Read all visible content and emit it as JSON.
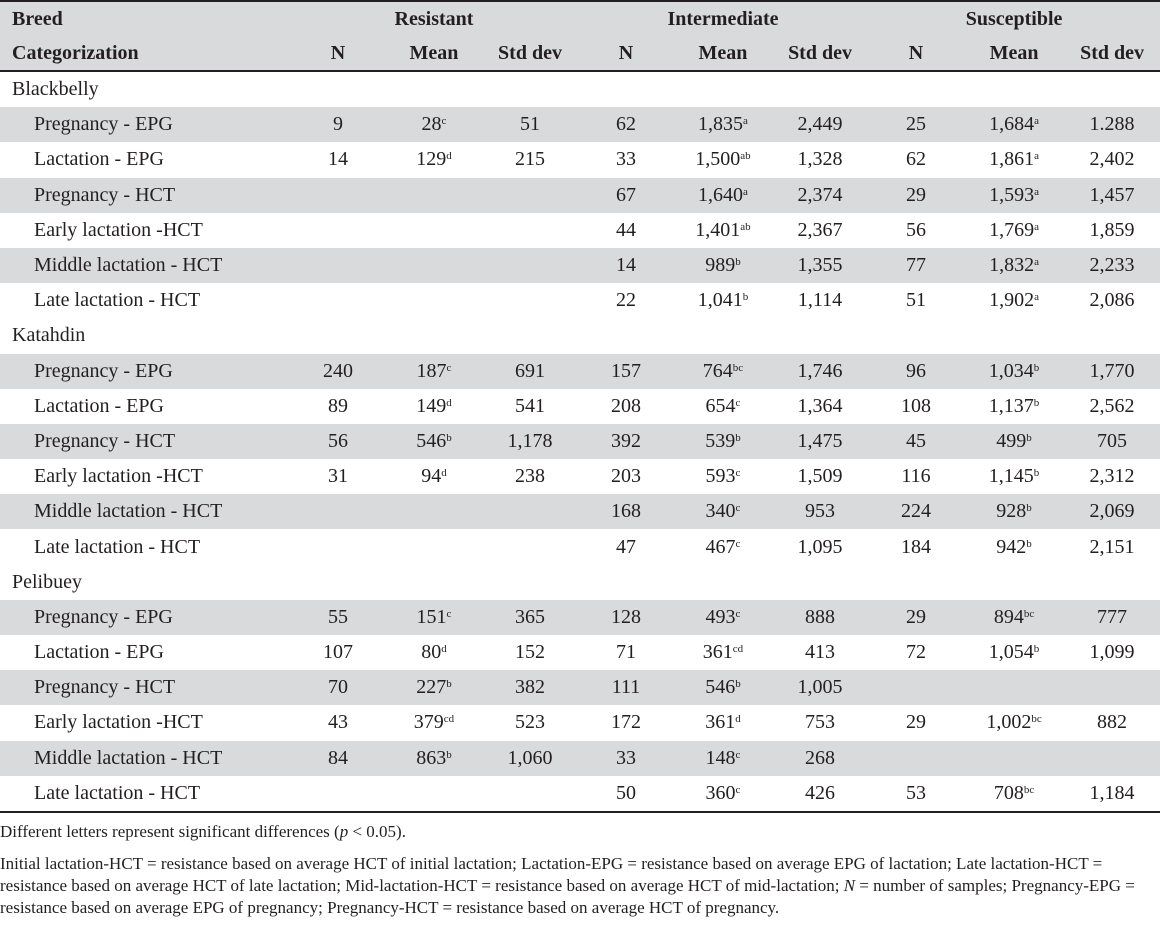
{
  "header": {
    "breed_label": "Breed",
    "categorization_label": "Categorization",
    "groups": [
      "Resistant",
      "Intermediate",
      "Susceptible"
    ],
    "subcols": [
      "N",
      "Mean",
      "Std dev"
    ]
  },
  "breeds": [
    {
      "name": "Blackbelly",
      "rows": [
        {
          "label": "Pregnancy - EPG",
          "cells": [
            [
              "9",
              "28",
              "c",
              "51"
            ],
            [
              "62",
              "1,835",
              "a",
              "2,449"
            ],
            [
              "25",
              "1,684",
              "a",
              "1.288"
            ]
          ]
        },
        {
          "label": "Lactation - EPG",
          "cells": [
            [
              "14",
              "129",
              "d",
              "215"
            ],
            [
              "33",
              "1,500",
              "ab",
              "1,328"
            ],
            [
              "62",
              "1,861",
              "a",
              "2,402"
            ]
          ]
        },
        {
          "label": "Pregnancy - HCT",
          "cells": [
            [
              "",
              "",
              "",
              ""
            ],
            [
              "67",
              "1,640",
              "a",
              "2,374"
            ],
            [
              "29",
              "1,593",
              "a",
              "1,457"
            ]
          ]
        },
        {
          "label": "Early lactation -HCT",
          "cells": [
            [
              "",
              "",
              "",
              ""
            ],
            [
              "44",
              "1,401",
              "ab",
              "2,367"
            ],
            [
              "56",
              "1,769",
              "a",
              "1,859"
            ]
          ]
        },
        {
          "label": "Middle lactation - HCT",
          "cells": [
            [
              "",
              "",
              "",
              ""
            ],
            [
              "14",
              "989",
              "b",
              "1,355"
            ],
            [
              "77",
              "1,832",
              "a",
              "2,233"
            ]
          ]
        },
        {
          "label": "Late lactation - HCT",
          "cells": [
            [
              "",
              "",
              "",
              ""
            ],
            [
              "22",
              "1,041",
              "b",
              "1,114"
            ],
            [
              "51",
              "1,902",
              "a",
              "2,086"
            ]
          ]
        }
      ]
    },
    {
      "name": "Katahdin",
      "rows": [
        {
          "label": "Pregnancy - EPG",
          "cells": [
            [
              "240",
              "187",
              "c",
              "691"
            ],
            [
              "157",
              "764",
              "bc",
              "1,746"
            ],
            [
              "96",
              "1,034",
              "b",
              "1,770"
            ]
          ]
        },
        {
          "label": "Lactation - EPG",
          "cells": [
            [
              "89",
              "149",
              "d",
              "541"
            ],
            [
              "208",
              "654",
              "c",
              "1,364"
            ],
            [
              "108",
              "1,137",
              "b",
              "2,562"
            ]
          ]
        },
        {
          "label": "Pregnancy - HCT",
          "cells": [
            [
              "56",
              "546",
              "b",
              "1,178"
            ],
            [
              "392",
              "539",
              "b",
              "1,475"
            ],
            [
              "45",
              "499",
              "b",
              "705"
            ]
          ]
        },
        {
          "label": "Early lactation -HCT",
          "cells": [
            [
              "31",
              "94",
              "d",
              "238"
            ],
            [
              "203",
              "593",
              "c",
              "1,509"
            ],
            [
              "116",
              "1,145",
              "b",
              "2,312"
            ]
          ]
        },
        {
          "label": "Middle lactation - HCT",
          "cells": [
            [
              "",
              "",
              "",
              ""
            ],
            [
              "168",
              "340",
              "c",
              "953"
            ],
            [
              "224",
              "928",
              "b",
              "2,069"
            ]
          ]
        },
        {
          "label": "Late lactation - HCT",
          "cells": [
            [
              "",
              "",
              "",
              ""
            ],
            [
              "47",
              "467",
              "c",
              "1,095"
            ],
            [
              "184",
              "942",
              "b",
              "2,151"
            ]
          ]
        }
      ]
    },
    {
      "name": "Pelibuey",
      "rows": [
        {
          "label": "Pregnancy - EPG",
          "cells": [
            [
              "55",
              "151",
              "c",
              "365"
            ],
            [
              "128",
              "493",
              "c",
              "888"
            ],
            [
              "29",
              "894",
              "bc",
              "777"
            ]
          ]
        },
        {
          "label": "Lactation - EPG",
          "cells": [
            [
              "107",
              "80",
              "d",
              "152"
            ],
            [
              "71",
              "361",
              "cd",
              "413"
            ],
            [
              "72",
              "1,054",
              "b",
              "1,099"
            ]
          ]
        },
        {
          "label": "Pregnancy - HCT",
          "cells": [
            [
              "70",
              "227",
              "b",
              "382"
            ],
            [
              "111",
              "546",
              "b",
              "1,005"
            ],
            [
              "",
              "",
              "",
              ""
            ]
          ]
        },
        {
          "label": "Early lactation -HCT",
          "cells": [
            [
              "43",
              "379",
              "cd",
              "523"
            ],
            [
              "172",
              "361",
              "d",
              "753"
            ],
            [
              "29",
              "1,002",
              "bc",
              "882"
            ]
          ]
        },
        {
          "label": "Middle lactation - HCT",
          "cells": [
            [
              "84",
              "863",
              "b",
              "1,060"
            ],
            [
              "33",
              "148",
              "c",
              "268"
            ],
            [
              "",
              "",
              "",
              ""
            ]
          ]
        },
        {
          "label": "Late lactation - HCT",
          "cells": [
            [
              "",
              "",
              "",
              ""
            ],
            [
              "50",
              "360",
              "c",
              "426"
            ],
            [
              "53",
              "708",
              "bc",
              "1,184"
            ]
          ]
        }
      ]
    }
  ],
  "notes": {
    "note1_before": "Different letters represent significant differences (",
    "note1_p": "p",
    "note1_after": " < 0.05).",
    "note2_a": "Initial lactation-HCT = resistance based on average HCT of initial lactation; Lactation-EPG = resistance based on average EPG of lactation; Late lactation-HCT = resistance based on average HCT of late lactation; Mid-lactation-HCT = resistance based on average HCT of mid-lactation; ",
    "note2_n": "N",
    "note2_b": " = number of samples; Pregnancy-EPG = resistance based on average EPG of pregnancy; Pregnancy-HCT = resistance based on average HCT of pregnancy."
  }
}
